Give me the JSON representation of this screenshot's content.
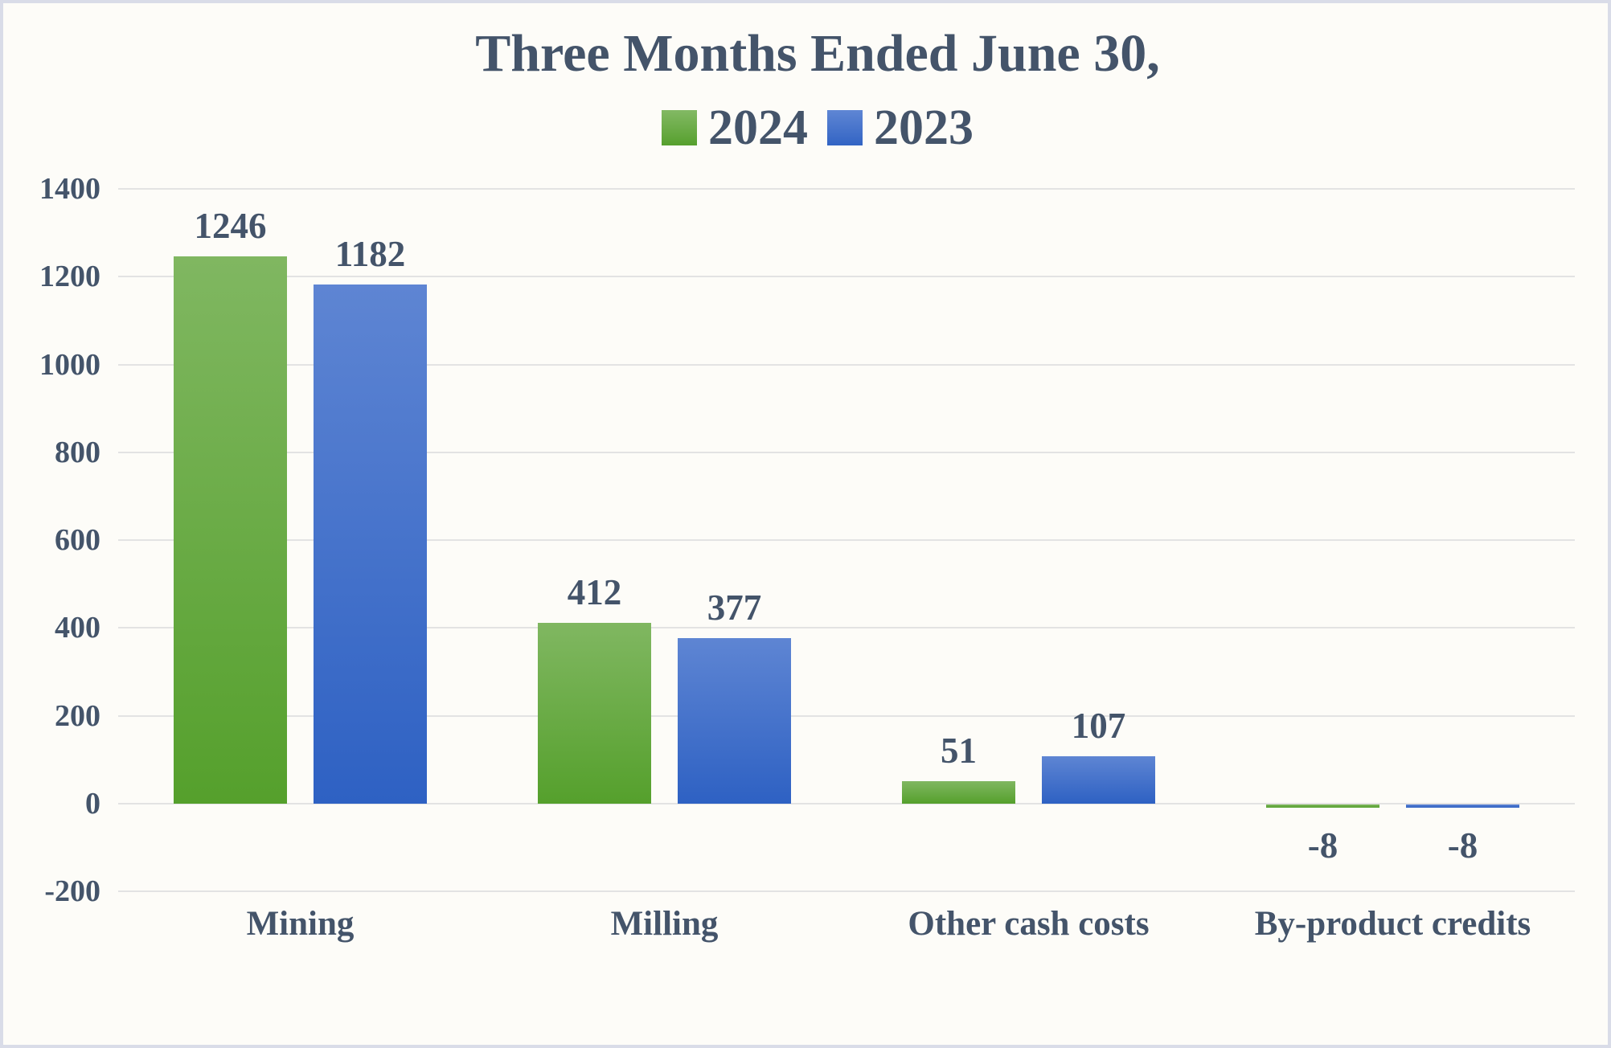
{
  "chart_data": {
    "type": "bar",
    "title": "Three Months Ended June 30,",
    "categories": [
      "Mining",
      "Milling",
      "Other cash costs",
      "By-product credits"
    ],
    "series": [
      {
        "name": "2024",
        "color": "#6aab43",
        "values": [
          1246,
          412,
          51,
          -8
        ]
      },
      {
        "name": "2023",
        "color": "#4472c4",
        "values": [
          1182,
          377,
          107,
          -8
        ]
      }
    ],
    "data_labels": [
      "1246",
      "1182",
      "412",
      "377",
      "51",
      "107",
      "-8",
      "-8"
    ],
    "ylim": [
      -200,
      1400
    ],
    "yticks": [
      1400,
      1200,
      1000,
      800,
      600,
      400,
      200,
      0,
      -200
    ],
    "grid": "horizontal",
    "legend_position": "top",
    "xlabel": "",
    "ylabel": ""
  },
  "colors": {
    "series_2024_top": "#80b761",
    "series_2024_bottom": "#55a02c",
    "series_2023_top": "#5e85d3",
    "series_2023_bottom": "#2e61c3",
    "text": "#44546a",
    "gridline": "#e3e3e3",
    "page_border": "#d9dce8",
    "background": "#fdfcf8"
  }
}
